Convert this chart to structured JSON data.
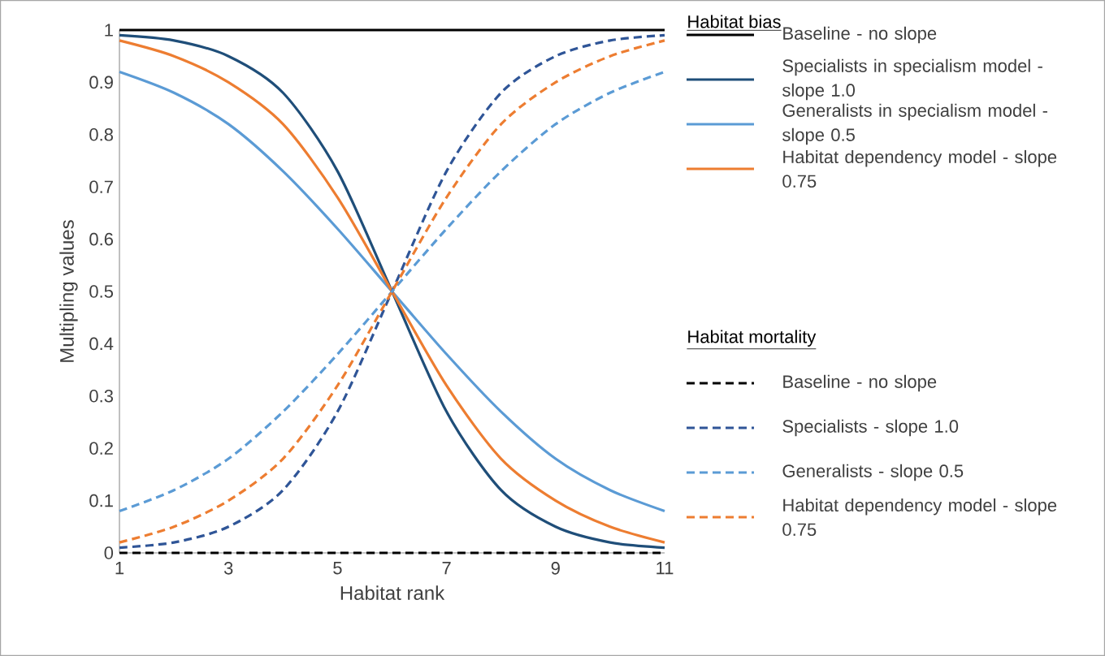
{
  "chart_data": {
    "type": "line",
    "xlabel": "Habitat rank",
    "ylabel": "Multipling values",
    "legend_title": "Habitat bias",
    "annotations": [
      "Habitat mortality"
    ],
    "legend": "right",
    "x": [
      1,
      2,
      3,
      4,
      5,
      6,
      7,
      8,
      9,
      10,
      11
    ],
    "xlim": [
      1,
      11
    ],
    "xticks": [
      1,
      3,
      5,
      7,
      9,
      11
    ],
    "ylim": [
      0,
      1
    ],
    "yticks": [
      0,
      0.1,
      0.2,
      0.3,
      0.4,
      0.5,
      0.6,
      0.7,
      0.8,
      0.9,
      1
    ],
    "series": [
      {
        "name": "Baseline - no slope",
        "color": "#000000",
        "line_style": "solid",
        "values": [
          1,
          1,
          1,
          1,
          1,
          1,
          1,
          1,
          1,
          1,
          1
        ]
      },
      {
        "name": "Specialists in specialism model - slope 1.0",
        "color": "#1f4e79",
        "line_style": "solid",
        "values": [
          0.99,
          0.98,
          0.95,
          0.88,
          0.73,
          0.5,
          0.27,
          0.12,
          0.05,
          0.02,
          0.01
        ]
      },
      {
        "name": "Generalists in specialism model - slope 0.5",
        "color": "#5b9bd5",
        "line_style": "solid",
        "values": [
          0.92,
          0.88,
          0.82,
          0.73,
          0.62,
          0.5,
          0.38,
          0.27,
          0.18,
          0.12,
          0.08
        ]
      },
      {
        "name": "Habitat dependency model - slope 0.75",
        "color": "#ed7d31",
        "line_style": "solid",
        "values": [
          0.98,
          0.95,
          0.9,
          0.82,
          0.68,
          0.5,
          0.32,
          0.18,
          0.1,
          0.05,
          0.02
        ]
      },
      {
        "name": "Baseline - no slope",
        "color": "#000000",
        "line_style": "dashed",
        "values": [
          0,
          0,
          0,
          0,
          0,
          0,
          0,
          0,
          0,
          0,
          0
        ]
      },
      {
        "name": "Specialists - slope 1.0",
        "color": "#2f5597",
        "line_style": "dashed",
        "values": [
          0.01,
          0.02,
          0.05,
          0.12,
          0.27,
          0.5,
          0.73,
          0.88,
          0.95,
          0.98,
          0.99
        ]
      },
      {
        "name": "Generalists - slope 0.5",
        "color": "#5b9bd5",
        "line_style": "dashed",
        "values": [
          0.08,
          0.12,
          0.18,
          0.27,
          0.38,
          0.5,
          0.62,
          0.73,
          0.82,
          0.88,
          0.92
        ]
      },
      {
        "name": "Habitat dependency model - slope 0.75",
        "color": "#ed7d31",
        "line_style": "dashed",
        "values": [
          0.02,
          0.05,
          0.1,
          0.18,
          0.32,
          0.5,
          0.68,
          0.82,
          0.9,
          0.95,
          0.98
        ]
      }
    ]
  }
}
